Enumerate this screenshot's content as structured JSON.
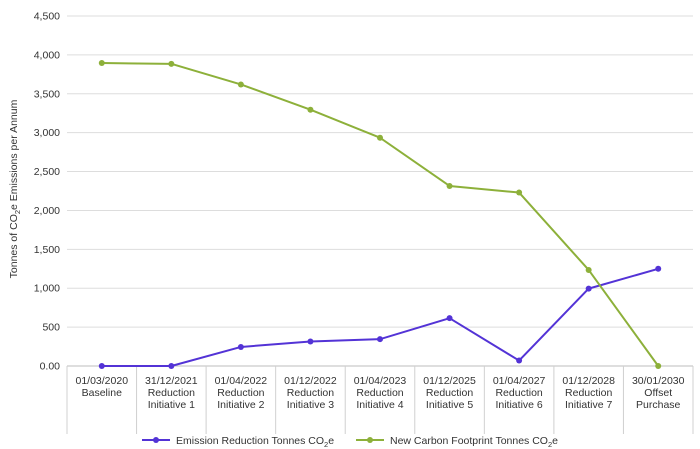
{
  "chart_data": {
    "type": "line",
    "title": "",
    "xlabel": "",
    "ylabel": "Tonnes of CO2e Emissions per Annum",
    "ylabel_parts": {
      "before": "Tonnes of CO",
      "sub": "2",
      "after": "e Emissions per Annum"
    },
    "ylim": [
      0,
      4500
    ],
    "yticks": [
      0,
      500,
      1000,
      1500,
      2000,
      2500,
      3000,
      3500,
      4000,
      4500
    ],
    "ytick_labels": [
      "0.00",
      "500",
      "1,000",
      "1,500",
      "2,000",
      "2,500",
      "3,000",
      "3,500",
      "4,000",
      "4,500"
    ],
    "grid": "horizontal",
    "legend": "bottom",
    "categories": [
      [
        "01/03/2020",
        "Baseline"
      ],
      [
        "31/12/2021",
        "Reduction",
        "Initiative 1"
      ],
      [
        "01/04/2022",
        "Reduction",
        "Initiative 2"
      ],
      [
        "01/12/2022",
        "Reduction",
        "Initiative 3"
      ],
      [
        "01/04/2023",
        "Reduction",
        "Initiative 4"
      ],
      [
        "01/12/2025",
        "Reduction",
        "Initiative 5"
      ],
      [
        "01/04/2027",
        "Reduction",
        "Initiative 6"
      ],
      [
        "01/12/2028",
        "Reduction",
        "Initiative 7"
      ],
      [
        "30/01/2030",
        "Offset",
        "Purchase"
      ]
    ],
    "series": [
      {
        "name": "Emission Reduction Tonnes CO2e",
        "name_parts": {
          "before": "Emission Reduction Tonnes CO",
          "sub": "2",
          "after": "e"
        },
        "color": "#5333d6",
        "values": [
          0,
          0,
          245,
          315,
          345,
          615,
          70,
          995,
          1250
        ]
      },
      {
        "name": "New Carbon Footprint Tonnes CO2e",
        "name_parts": {
          "before": "New Carbon Footprint Tonnes CO",
          "sub": "2",
          "after": "e"
        },
        "color": "#8db03a",
        "values": [
          3895,
          3885,
          3620,
          3295,
          2935,
          2315,
          2230,
          1235,
          0
        ]
      }
    ]
  }
}
